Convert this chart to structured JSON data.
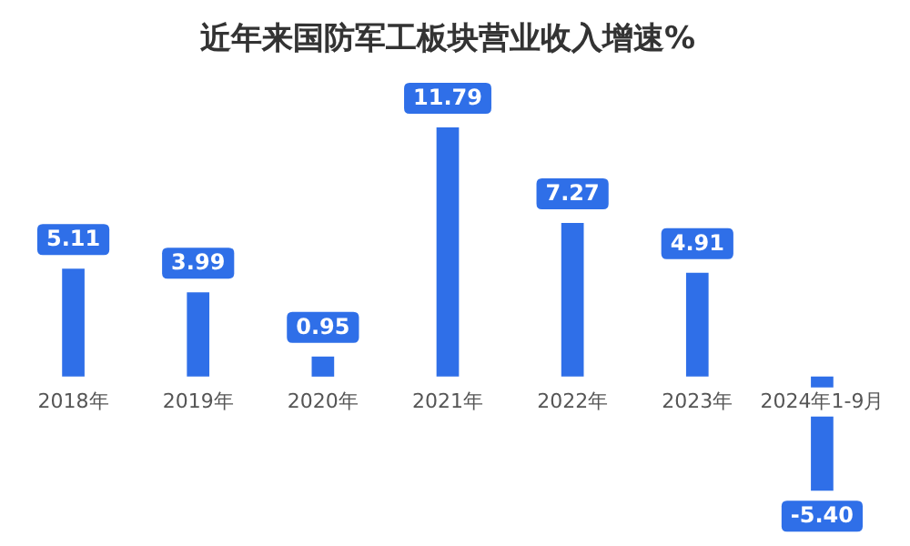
{
  "chart_data": {
    "type": "bar",
    "title": "近年来国防军工板块营业收入增速%",
    "categories": [
      "2018年",
      "2019年",
      "2020年",
      "2021年",
      "2022年",
      "2023年",
      "2024年1-9月"
    ],
    "values": [
      5.11,
      3.99,
      0.95,
      11.79,
      7.27,
      4.91,
      -5.4
    ],
    "value_labels": [
      "5.11",
      "3.99",
      "0.95",
      "11.79",
      "7.27",
      "4.91",
      "-5.40"
    ],
    "color": "#2f6fe8",
    "ylim": [
      -7.5,
      14
    ],
    "grid": false,
    "legend": false,
    "tick_labels": "x"
  }
}
